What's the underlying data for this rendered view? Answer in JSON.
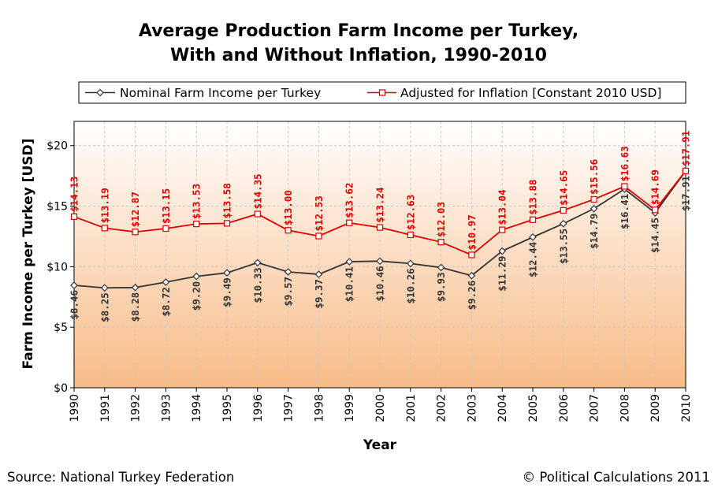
{
  "colors": {
    "nominal": "#333333",
    "adjusted": "#dd0000",
    "plot_top": "#ffffff",
    "plot_bottom": "#f8bb86",
    "grid": "#c8c8c8"
  },
  "footer": {
    "source": "Source: National Turkey Federation",
    "copyright": "© Political Calculations 2011"
  },
  "chart_data": {
    "type": "line",
    "title_lines": [
      "Average Production Farm Income per Turkey,",
      "With and Without Inflation, 1990-2010"
    ],
    "xlabel": "Year",
    "ylabel": "Farm Income per Turkey [USD]",
    "ylim": [
      0,
      22
    ],
    "yticks": [
      0,
      5,
      10,
      15,
      20
    ],
    "ytick_labels": [
      "$0",
      "$5",
      "$10",
      "$15",
      "$20"
    ],
    "legend_position": "top",
    "grid": true,
    "categories": [
      "1990",
      "1991",
      "1992",
      "1993",
      "1994",
      "1995",
      "1996",
      "1997",
      "1998",
      "1999",
      "2000",
      "2001",
      "2002",
      "2003",
      "2004",
      "2005",
      "2006",
      "2007",
      "2008",
      "2009",
      "2010"
    ],
    "series": [
      {
        "name": "Nominal Farm Income per Turkey",
        "marker": "diamond",
        "values": [
          8.46,
          8.25,
          8.28,
          8.72,
          9.2,
          9.49,
          10.33,
          9.57,
          9.37,
          10.41,
          10.46,
          10.26,
          9.93,
          9.26,
          11.29,
          12.44,
          13.55,
          14.79,
          16.41,
          14.45,
          17.91
        ],
        "labels": [
          "$8.46",
          "$8.25",
          "$8.28",
          "$8.72",
          "$9.20",
          "$9.49",
          "$10.33",
          "$9.57",
          "$9.37",
          "$10.41",
          "$10.46",
          "$10.26",
          "$9.93",
          "$9.26",
          "$11.29",
          "$12.44",
          "$13.55",
          "$14.79",
          "$16.41",
          "$14.45",
          "$17.91"
        ]
      },
      {
        "name": "Adjusted for Inflation [Constant 2010 USD]",
        "marker": "square",
        "values": [
          14.13,
          13.19,
          12.87,
          13.15,
          13.53,
          13.58,
          14.35,
          13.0,
          12.53,
          13.62,
          13.24,
          12.63,
          12.03,
          10.97,
          13.04,
          13.88,
          14.65,
          15.56,
          16.63,
          14.69,
          17.91
        ],
        "labels": [
          "$14.13",
          "$13.19",
          "$12.87",
          "$13.15",
          "$13.53",
          "$13.58",
          "$14.35",
          "$13.00",
          "$12.53",
          "$13.62",
          "$13.24",
          "$12.63",
          "$12.03",
          "$10.97",
          "$13.04",
          "$13.88",
          "$14.65",
          "$15.56",
          "$16.63",
          "$14.69",
          "$17.91"
        ]
      }
    ]
  }
}
